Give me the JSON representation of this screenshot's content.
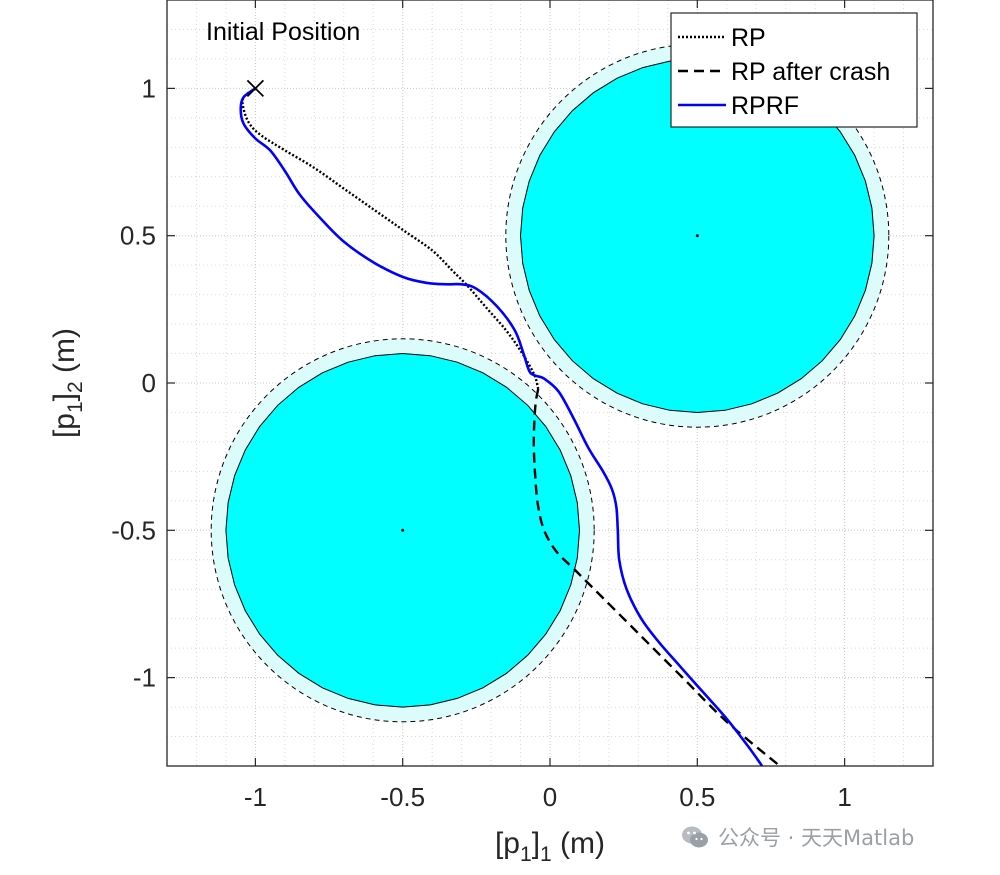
{
  "chart_data": {
    "type": "line",
    "title": "",
    "xlabel_main": "[p",
    "xlabel_sub1": "1",
    "xlabel_close": "]",
    "xlabel_sub2": "1",
    "xlabel_unit": " (m)",
    "ylabel_main": "[p",
    "ylabel_sub1": "1",
    "ylabel_close": "]",
    "ylabel_sub2": "2",
    "ylabel_unit": " (m)",
    "xlim": [
      -1.3,
      1.3
    ],
    "ylim": [
      -1.3,
      1.3
    ],
    "xticks": [
      -1,
      -0.5,
      0,
      0.5,
      1
    ],
    "yticks": [
      -1,
      -0.5,
      0,
      0.5,
      1
    ],
    "xtick_labels": [
      "-1",
      "-0.5",
      "0",
      "0.5",
      "1"
    ],
    "ytick_labels": [
      "-1",
      "-0.5",
      "0",
      "0.5",
      "1"
    ],
    "grid": true,
    "minor_grid": true,
    "legend_position": "top-right",
    "annotation": {
      "text": "Initial Position"
    },
    "start_marker": {
      "x": -1.0,
      "y": 1.0,
      "symbol": "x"
    },
    "obstacles": [
      {
        "name": "obstacle-upper-right",
        "cx": 0.5,
        "cy": 0.5,
        "r": 0.6,
        "safety_r": 0.65,
        "color": "#00ffff"
      },
      {
        "name": "obstacle-lower-left",
        "cx": -0.5,
        "cy": -0.5,
        "r": 0.6,
        "safety_r": 0.65,
        "color": "#00ffff"
      }
    ],
    "series": [
      {
        "name": "RP",
        "style": "dotted",
        "color": "#000000",
        "points": [
          [
            -1.0,
            1.0
          ],
          [
            -1.04,
            0.97
          ],
          [
            -1.04,
            0.93
          ],
          [
            -1.02,
            0.88
          ],
          [
            -0.98,
            0.84
          ],
          [
            -0.9,
            0.79
          ],
          [
            -0.8,
            0.73
          ],
          [
            -0.7,
            0.66
          ],
          [
            -0.6,
            0.59
          ],
          [
            -0.5,
            0.52
          ],
          [
            -0.4,
            0.45
          ],
          [
            -0.33,
            0.38
          ],
          [
            -0.28,
            0.33
          ],
          [
            -0.22,
            0.26
          ],
          [
            -0.15,
            0.18
          ],
          [
            -0.1,
            0.11
          ],
          [
            -0.07,
            0.06
          ],
          [
            -0.05,
            0.02
          ],
          [
            -0.04,
            -0.02
          ]
        ]
      },
      {
        "name": "RP after crash",
        "style": "dashed",
        "color": "#000000",
        "points": [
          [
            -0.04,
            -0.02
          ],
          [
            -0.05,
            -0.08
          ],
          [
            -0.055,
            -0.2
          ],
          [
            -0.05,
            -0.32
          ],
          [
            -0.04,
            -0.42
          ],
          [
            -0.02,
            -0.5
          ],
          [
            0.02,
            -0.57
          ],
          [
            0.08,
            -0.63
          ],
          [
            0.15,
            -0.7
          ],
          [
            0.3,
            -0.85
          ],
          [
            0.45,
            -1.0
          ],
          [
            0.6,
            -1.15
          ],
          [
            0.78,
            -1.3
          ]
        ]
      },
      {
        "name": "RPRF",
        "style": "solid",
        "color": "#0000ff",
        "points": [
          [
            -1.0,
            1.0
          ],
          [
            -1.04,
            0.97
          ],
          [
            -1.05,
            0.93
          ],
          [
            -1.04,
            0.88
          ],
          [
            -1.0,
            0.83
          ],
          [
            -0.95,
            0.79
          ],
          [
            -0.9,
            0.72
          ],
          [
            -0.85,
            0.64
          ],
          [
            -0.78,
            0.56
          ],
          [
            -0.7,
            0.48
          ],
          [
            -0.6,
            0.41
          ],
          [
            -0.5,
            0.36
          ],
          [
            -0.42,
            0.34
          ],
          [
            -0.35,
            0.335
          ],
          [
            -0.3,
            0.335
          ],
          [
            -0.25,
            0.32
          ],
          [
            -0.18,
            0.26
          ],
          [
            -0.12,
            0.18
          ],
          [
            -0.09,
            0.1
          ],
          [
            -0.07,
            0.04
          ],
          [
            -0.05,
            0.025
          ],
          [
            -0.02,
            0.015
          ],
          [
            0.03,
            -0.03
          ],
          [
            0.08,
            -0.12
          ],
          [
            0.13,
            -0.22
          ],
          [
            0.18,
            -0.3
          ],
          [
            0.21,
            -0.36
          ],
          [
            0.225,
            -0.42
          ],
          [
            0.23,
            -0.5
          ],
          [
            0.235,
            -0.6
          ],
          [
            0.26,
            -0.7
          ],
          [
            0.31,
            -0.8
          ],
          [
            0.37,
            -0.88
          ],
          [
            0.44,
            -0.96
          ],
          [
            0.52,
            -1.05
          ],
          [
            0.6,
            -1.14
          ],
          [
            0.67,
            -1.23
          ],
          [
            0.72,
            -1.3
          ]
        ]
      }
    ],
    "legend_entries": [
      "RP",
      "RP after crash",
      "RPRF"
    ]
  },
  "watermark": {
    "text": "公众号 · 天天Matlab",
    "icon": "wechat-icon"
  }
}
